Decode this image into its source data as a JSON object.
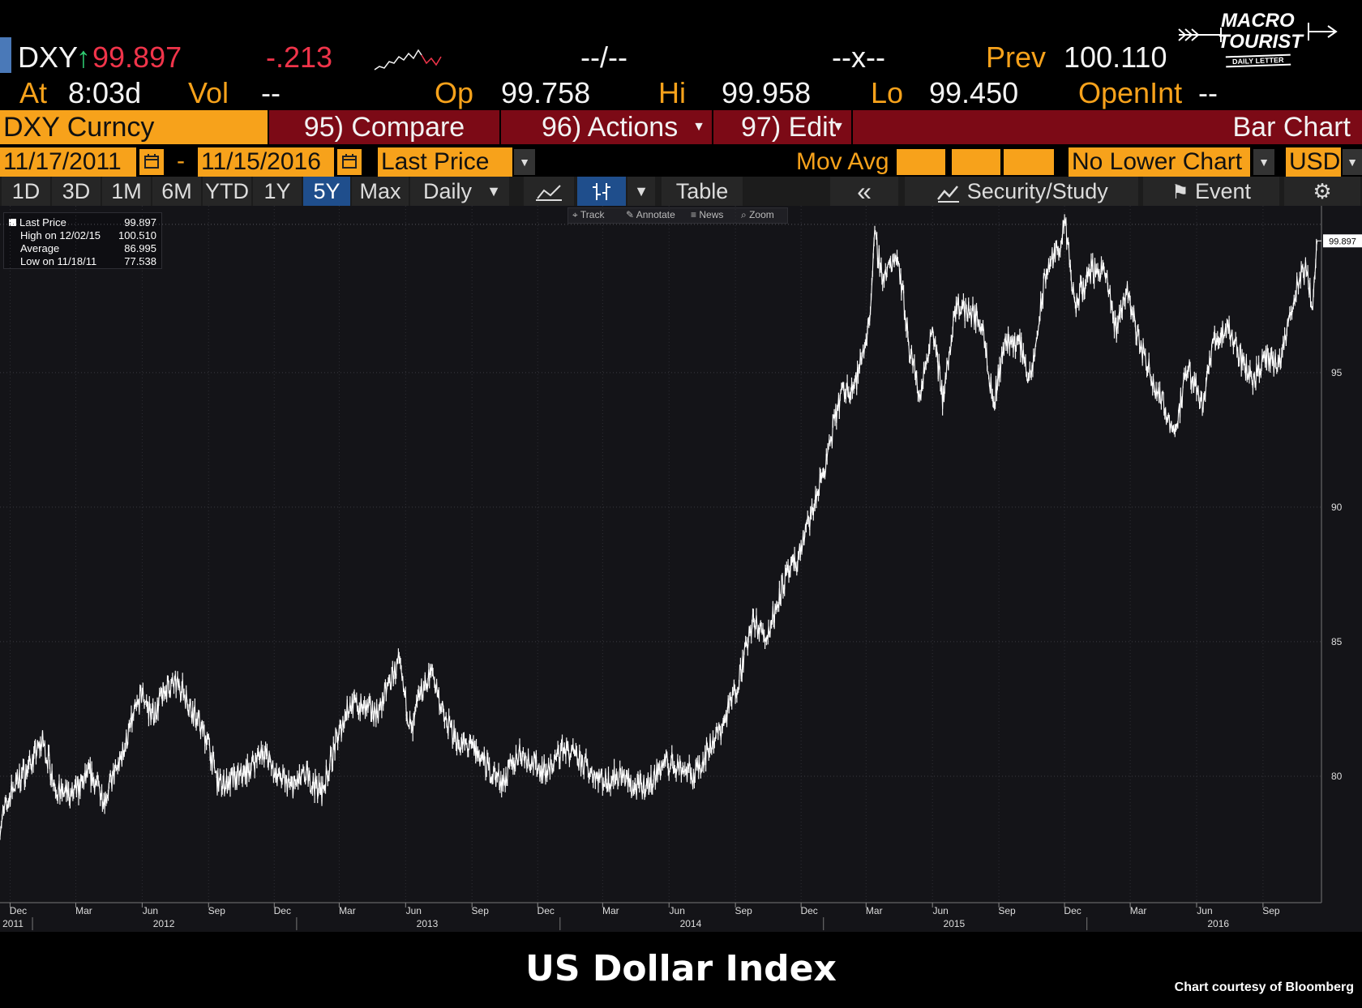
{
  "quote": {
    "ticker": "DXY",
    "last": "99.897",
    "change": "-.213",
    "bid_ask": "--/--",
    "size": "--x--",
    "prev_label": "Prev",
    "prev_value": "100.110",
    "at_label": "At",
    "time": "8:03d",
    "vol_label": "Vol",
    "vol_value": "--",
    "op_label": "Op",
    "op_value": "99.758",
    "hi_label": "Hi",
    "hi_value": "99.958",
    "lo_label": "Lo",
    "lo_value": "99.450",
    "openint_label": "OpenInt",
    "openint_value": "--"
  },
  "logo": {
    "line1": "MACRO",
    "line2": "TOURIST",
    "line3": "DAILY LETTER"
  },
  "menu": {
    "security": "DXY Curncy",
    "compare": "95) Compare",
    "actions": "96) Actions",
    "edit": "97) Edit",
    "chart_type": "Bar Chart"
  },
  "controls": {
    "start_date": "11/17/2011",
    "dash": "-",
    "end_date": "11/15/2016",
    "field": "Last Price",
    "mov_avg": "Mov Avg",
    "lower_chart": "No Lower Chart",
    "currency": "USD"
  },
  "toolbar": {
    "ranges": [
      "1D",
      "3D",
      "1M",
      "6M",
      "YTD",
      "1Y",
      "5Y",
      "Max"
    ],
    "active_range": "5Y",
    "frequency": "Daily",
    "table": "Table",
    "collapse": "«",
    "security_study": "Security/Study",
    "event": "Event"
  },
  "subtools": [
    "Track",
    "Annotate",
    "News",
    "Zoom"
  ],
  "legend": [
    {
      "label": "Last Price",
      "value": "99.897"
    },
    {
      "label": "High on 12/02/15",
      "value": "100.510"
    },
    {
      "label": "Average",
      "value": "86.995"
    },
    {
      "label": "Low on 11/18/11",
      "value": "77.538"
    }
  ],
  "caption": "US Dollar Index",
  "credit": "Chart courtesy of Bloomberg",
  "colors": {
    "amber": "#f7a21b",
    "red": "#f0344a",
    "crimson": "#7c0a16",
    "active": "#1f4e8c",
    "green": "#2ecc71"
  },
  "chart_data": {
    "type": "line",
    "title": "",
    "xlabel": "",
    "ylabel": "",
    "ylim": [
      75.3,
      101.2
    ],
    "yticks": [
      80,
      85,
      90,
      95
    ],
    "last_value": 99.897,
    "x_month_ticks": [
      "Dec",
      "Mar",
      "Jun",
      "Sep",
      "Dec",
      "Mar",
      "Jun",
      "Sep",
      "Dec",
      "Mar",
      "Jun",
      "Sep",
      "Dec",
      "Mar",
      "Jun",
      "Sep",
      "Dec",
      "Mar",
      "Jun",
      "Sep"
    ],
    "x_year_labels": [
      "2011",
      "2012",
      "2013",
      "2014",
      "2015",
      "2016"
    ],
    "series": [
      {
        "x": [
          "2011-11-17",
          "2011-12-05",
          "2011-12-25",
          "2012-01-15",
          "2012-02-05",
          "2012-02-28",
          "2012-03-20",
          "2012-04-10",
          "2012-05-01",
          "2012-05-20",
          "2012-06-01",
          "2012-06-15",
          "2012-07-05",
          "2012-07-24",
          "2012-08-10",
          "2012-08-30",
          "2012-09-14",
          "2012-10-05",
          "2012-10-25",
          "2012-11-15",
          "2012-12-05",
          "2012-12-25",
          "2013-01-15",
          "2013-02-05",
          "2013-02-25",
          "2013-03-15",
          "2013-04-05",
          "2013-04-25",
          "2013-05-10",
          "2013-05-22",
          "2013-06-10",
          "2013-06-20",
          "2013-07-08",
          "2013-07-25",
          "2013-08-15",
          "2013-09-05",
          "2013-09-25",
          "2013-10-15",
          "2013-11-05",
          "2013-11-25",
          "2013-12-15",
          "2014-01-05",
          "2014-01-25",
          "2014-02-15",
          "2014-03-05",
          "2014-03-25",
          "2014-04-15",
          "2014-05-05",
          "2014-05-25",
          "2014-06-15",
          "2014-07-05",
          "2014-07-25",
          "2014-08-15",
          "2014-09-05",
          "2014-09-25",
          "2014-10-15",
          "2014-11-05",
          "2014-11-25",
          "2014-12-15",
          "2015-01-05",
          "2015-01-25",
          "2015-02-15",
          "2015-03-05",
          "2015-03-13",
          "2015-03-25",
          "2015-04-13",
          "2015-04-30",
          "2015-05-15",
          "2015-06-01",
          "2015-06-15",
          "2015-07-05",
          "2015-07-25",
          "2015-08-10",
          "2015-08-24",
          "2015-09-10",
          "2015-09-30",
          "2015-10-15",
          "2015-11-05",
          "2015-11-25",
          "2015-12-02",
          "2015-12-15",
          "2016-01-05",
          "2016-01-25",
          "2016-02-10",
          "2016-02-25",
          "2016-03-15",
          "2016-04-05",
          "2016-05-02",
          "2016-05-20",
          "2016-06-10",
          "2016-06-24",
          "2016-07-15",
          "2016-08-05",
          "2016-08-18",
          "2016-09-05",
          "2016-09-25",
          "2016-10-15",
          "2016-10-30",
          "2016-11-08",
          "2016-11-15"
        ],
        "y": [
          78.2,
          79.6,
          80.3,
          81.3,
          79.4,
          79.3,
          80.1,
          79.2,
          80.5,
          82.2,
          83.1,
          82.2,
          83.3,
          83.4,
          82.4,
          81.4,
          79.7,
          79.8,
          80.2,
          81.0,
          80.0,
          79.6,
          80.0,
          79.4,
          81.3,
          82.7,
          82.5,
          82.4,
          83.5,
          84.2,
          81.5,
          83.0,
          83.9,
          82.1,
          81.2,
          81.0,
          80.2,
          79.8,
          80.9,
          80.5,
          80.1,
          81.1,
          80.6,
          80.2,
          79.8,
          80.1,
          79.5,
          79.7,
          80.5,
          80.4,
          80.0,
          81.0,
          81.9,
          83.6,
          85.7,
          85.2,
          87.1,
          88.0,
          89.7,
          91.7,
          94.2,
          94.6,
          96.8,
          100.0,
          98.5,
          99.5,
          96.0,
          94.1,
          96.8,
          94.0,
          97.5,
          97.2,
          96.8,
          93.8,
          96.2,
          96.1,
          94.6,
          98.7,
          99.8,
          100.5,
          97.4,
          98.8,
          98.8,
          96.6,
          98.1,
          96.0,
          94.5,
          92.8,
          95.2,
          93.9,
          96.1,
          96.7,
          95.3,
          94.8,
          95.5,
          95.3,
          98.0,
          98.8,
          97.5,
          99.9
        ]
      }
    ]
  }
}
